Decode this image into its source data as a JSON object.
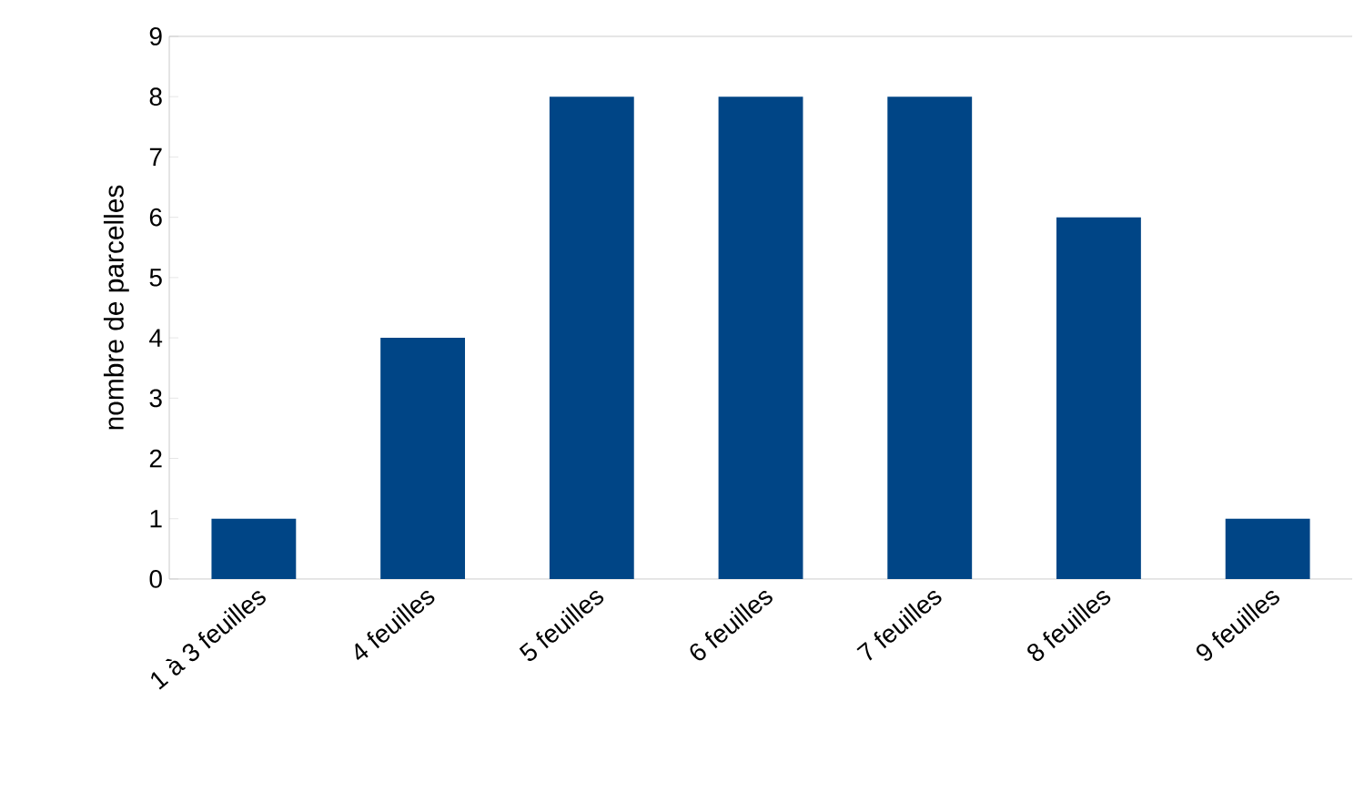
{
  "chart_data": {
    "type": "bar",
    "ylabel": "nombre de parcelles",
    "categories": [
      "1 à 3 feuilles",
      "4 feuilles",
      "5 feuilles",
      "6 feuilles",
      "7 feuilles",
      "8 feuilles",
      "9 feuilles"
    ],
    "values": [
      1,
      4,
      8,
      8,
      8,
      6,
      1
    ],
    "color": "#004586",
    "ylim": [
      0,
      9
    ],
    "yticks": [
      0,
      1,
      2,
      3,
      4,
      5,
      6,
      7,
      8,
      9
    ],
    "grid": false
  }
}
